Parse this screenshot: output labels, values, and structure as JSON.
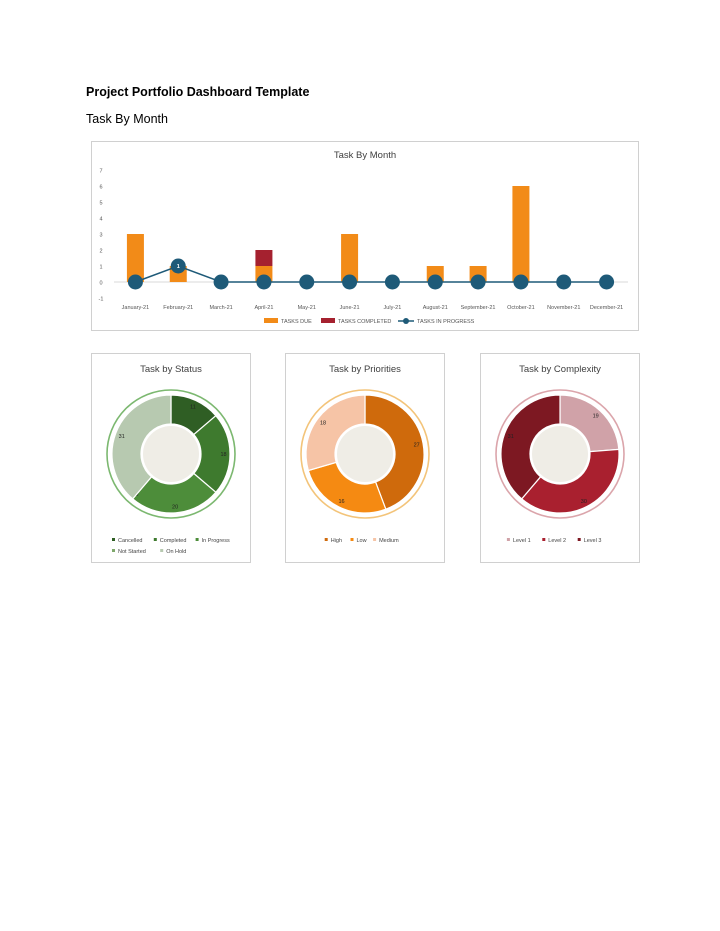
{
  "document": {
    "title": "Project Portfolio Dashboard Template",
    "section_heading": "Task By Month"
  },
  "chart_data": [
    {
      "type": "bar",
      "title": "Task By Month",
      "categories": [
        "January-21",
        "February-21",
        "March-21",
        "April-21",
        "May-21",
        "June-21",
        "July-21",
        "August-21",
        "September-21",
        "October-21",
        "November-21",
        "December-21"
      ],
      "series": [
        {
          "name": "TASKS DUE",
          "kind": "bar",
          "color": "#f28b18",
          "values": [
            3,
            1,
            0,
            1,
            0,
            3,
            0,
            1,
            1,
            6,
            0,
            0
          ]
        },
        {
          "name": "TASKS COMPLETED",
          "kind": "bar",
          "color": "#a5212f",
          "values": [
            0,
            0,
            0,
            1,
            0,
            0,
            0,
            0,
            0,
            0,
            0,
            0
          ]
        },
        {
          "name": "TASKS IN PROGRESS",
          "kind": "line",
          "color": "#1e5a78",
          "values": [
            0,
            1,
            0,
            0,
            0,
            0,
            0,
            0,
            0,
            0,
            0,
            0
          ]
        }
      ],
      "ylim": [
        -1,
        7
      ],
      "yticks": [
        -1,
        0,
        1,
        2,
        3,
        4,
        5,
        6,
        7
      ],
      "point_labels": [
        {
          "index": 1,
          "text": "1"
        }
      ],
      "legend": "bottom"
    },
    {
      "type": "pie",
      "title": "Task by Status",
      "labels": [
        "Cancelled",
        "Completed",
        "In Progress",
        "Not Started",
        "On Hold"
      ],
      "values": [
        11,
        18,
        20,
        0,
        31
      ],
      "value_labels": [
        "11",
        "18",
        "20",
        "0",
        "31"
      ],
      "colors": [
        "#2f5e24",
        "#3e7a2e",
        "#4d8d3a",
        "#7fa86c",
        "#b7c9b0"
      ],
      "ring_color": "#7cb870",
      "legend_rows": [
        [
          "Cancelled",
          "Completed",
          "In Progress"
        ],
        [
          "Not Started",
          "On Hold"
        ]
      ]
    },
    {
      "type": "pie",
      "title": "Task by Priorities",
      "labels": [
        "High",
        "Low",
        "Medium"
      ],
      "values": [
        27,
        16,
        18
      ],
      "value_labels": [
        "27",
        "16",
        "18"
      ],
      "colors": [
        "#cf6a0c",
        "#f58a12",
        "#f6c4a6"
      ],
      "ring_color": "#f3c47a",
      "legend_rows": [
        [
          "High",
          "Low",
          "Medium"
        ]
      ]
    },
    {
      "type": "pie",
      "title": "Task by Complexity",
      "labels": [
        "Level 1",
        "Level 2",
        "Level 3"
      ],
      "values": [
        19,
        30,
        31
      ],
      "value_labels": [
        "19",
        "30",
        "31"
      ],
      "colors": [
        "#d0a2a8",
        "#a9202f",
        "#7d1822"
      ],
      "ring_color": "#dba5ab",
      "legend_rows": [
        [
          "Level 1",
          "Level 2",
          "Level 3"
        ]
      ]
    }
  ]
}
